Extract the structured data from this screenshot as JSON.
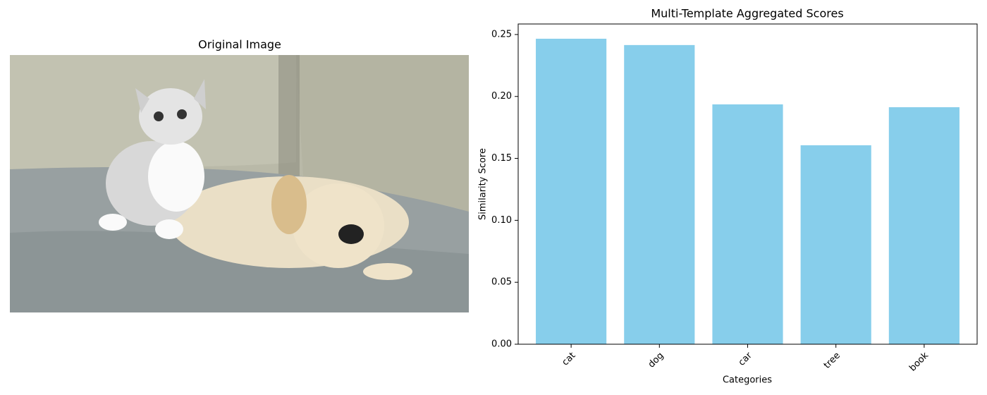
{
  "image_panel": {
    "title": "Original Image"
  },
  "chart_data": {
    "type": "bar",
    "title": "Multi-Template Aggregated Scores",
    "x_label": "Categories",
    "y_label": "Similarity Score",
    "categories": [
      "cat",
      "dog",
      "car",
      "tree",
      "book"
    ],
    "values": [
      0.2466,
      0.2415,
      0.1936,
      0.1606,
      0.1913
    ],
    "color": "#87ceeb",
    "ylim": [
      0,
      0.2585
    ],
    "yticks": [
      {
        "value": 0,
        "label": "0.00"
      },
      {
        "value": 0.05,
        "label": "0.05"
      },
      {
        "value": 0.1,
        "label": "0.10"
      },
      {
        "value": 0.15,
        "label": "0.15"
      },
      {
        "value": 0.2,
        "label": "0.20"
      },
      {
        "value": 0.25,
        "label": "0.25"
      }
    ],
    "grid": false
  }
}
